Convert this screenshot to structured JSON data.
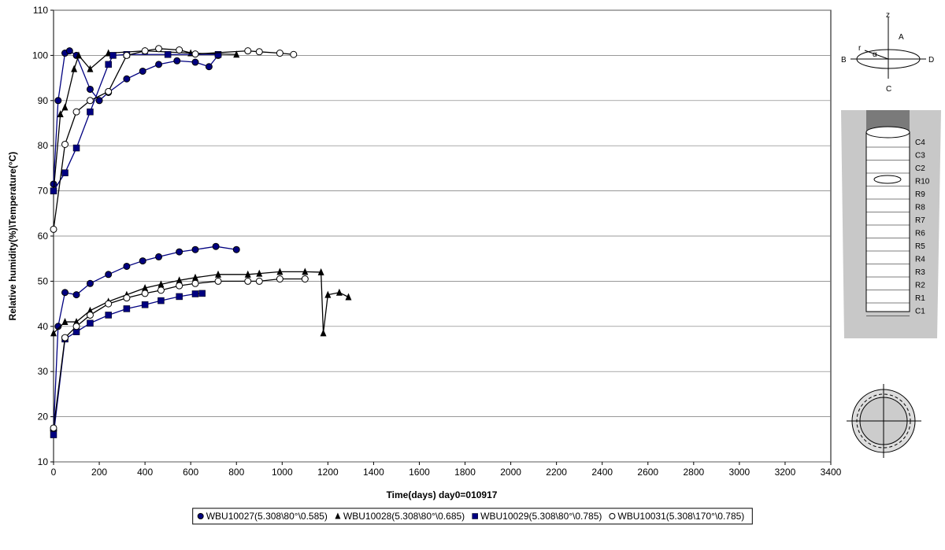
{
  "chart_data": {
    "type": "line",
    "y_label": "Relative humidity(%)\\Temperature(°C)",
    "x_label": "Time(days) day0=010917",
    "xlim": [
      0,
      3400
    ],
    "ylim": [
      10,
      110
    ],
    "xticks": [
      0,
      200,
      400,
      600,
      800,
      1000,
      1200,
      1400,
      1600,
      1800,
      2000,
      2200,
      2400,
      2600,
      2800,
      3000,
      3200,
      3400
    ],
    "yticks": [
      10,
      20,
      30,
      40,
      50,
      60,
      70,
      80,
      90,
      100,
      110
    ],
    "grid": true,
    "legend": "bottom",
    "series": [
      {
        "name": "WBU10027(5.308\\80°\\0.585)",
        "color": "#000080",
        "marker": "circle",
        "curves": [
          {
            "x": [
              0,
              20,
              50,
              70,
              100,
              160,
              200,
              240,
              320,
              390,
              460,
              540,
              620,
              680,
              720
            ],
            "values": [
              71.5,
              90,
              100.5,
              101,
              100,
              92.5,
              90,
              91.8,
              94.8,
              96.5,
              98,
              98.8,
              98.5,
              97.5,
              100
            ]
          },
          {
            "x": [
              0,
              20,
              50,
              100,
              160,
              240,
              320,
              390,
              460,
              550,
              620,
              710,
              800
            ],
            "values": [
              17,
              40,
              47.5,
              47,
              49.5,
              51.5,
              53.3,
              54.5,
              55.4,
              56.5,
              57,
              57.7,
              57
            ]
          }
        ]
      },
      {
        "name": "WBU10028(5.308\\80°\\0.685)",
        "color": "#000000",
        "marker": "triangle",
        "curves": [
          {
            "x": [
              0,
              30,
              50,
              90,
              110,
              160,
              240,
              400,
              600,
              800
            ],
            "values": [
              70,
              87,
              88.5,
              97,
              100,
              97,
              100.5,
              101,
              100.5,
              100.2
            ]
          },
          {
            "x": [
              0,
              50,
              100,
              160,
              240,
              320,
              400,
              470,
              550,
              620,
              720,
              850,
              900,
              990,
              1100,
              1170,
              1180,
              1200,
              1250,
              1290
            ],
            "values": [
              38.5,
              41,
              41,
              43.5,
              45.5,
              47,
              48.5,
              49.3,
              50.2,
              50.8,
              51.5,
              51.5,
              51.7,
              52.1,
              52.1,
              52,
              38.5,
              47,
              47.5,
              46.5
            ]
          }
        ]
      },
      {
        "name": "WBU10029(5.308\\80°\\0.785)",
        "color": "#000080",
        "marker": "square",
        "curves": [
          {
            "x": [
              0,
              50,
              100,
              160,
              240,
              260,
              320,
              500,
              720
            ],
            "values": [
              70,
              74,
              79.5,
              87.5,
              98,
              100,
              100.2,
              100.2,
              100.2
            ]
          },
          {
            "x": [
              0,
              50,
              100,
              160,
              240,
              320,
              400,
              470,
              550,
              620,
              650
            ],
            "values": [
              16,
              37.2,
              38.8,
              40.7,
              42.5,
              43.9,
              44.8,
              45.7,
              46.6,
              47.2,
              47.3
            ]
          }
        ]
      },
      {
        "name": "WBU10031(5.308\\170°\\0.785)",
        "color": "#000000",
        "marker": "open-circle",
        "curves": [
          {
            "x": [
              0,
              50,
              100,
              160,
              240,
              320,
              400,
              460,
              550,
              620,
              850,
              900,
              990,
              1050
            ],
            "values": [
              61.5,
              80.3,
              87.5,
              90,
              92,
              100,
              101,
              101.5,
              101.2,
              100.3,
              101,
              100.8,
              100.5,
              100.2
            ]
          },
          {
            "x": [
              0,
              50,
              100,
              160,
              240,
              320,
              400,
              470,
              550,
              620,
              720,
              850,
              900,
              990,
              1100
            ],
            "values": [
              17.5,
              37.5,
              40,
              42.5,
              45,
              46.3,
              47.3,
              48,
              49,
              49.5,
              50,
              50,
              50,
              50.5,
              50.5
            ]
          }
        ]
      }
    ]
  },
  "diagram": {
    "axis_labels": [
      "z",
      "A",
      "B",
      "C",
      "D",
      "r",
      "α"
    ],
    "rings": [
      "C4",
      "C3",
      "C2",
      "R10",
      "R9",
      "R8",
      "R7",
      "R6",
      "R5",
      "R4",
      "R3",
      "R2",
      "R1",
      "C1"
    ]
  }
}
